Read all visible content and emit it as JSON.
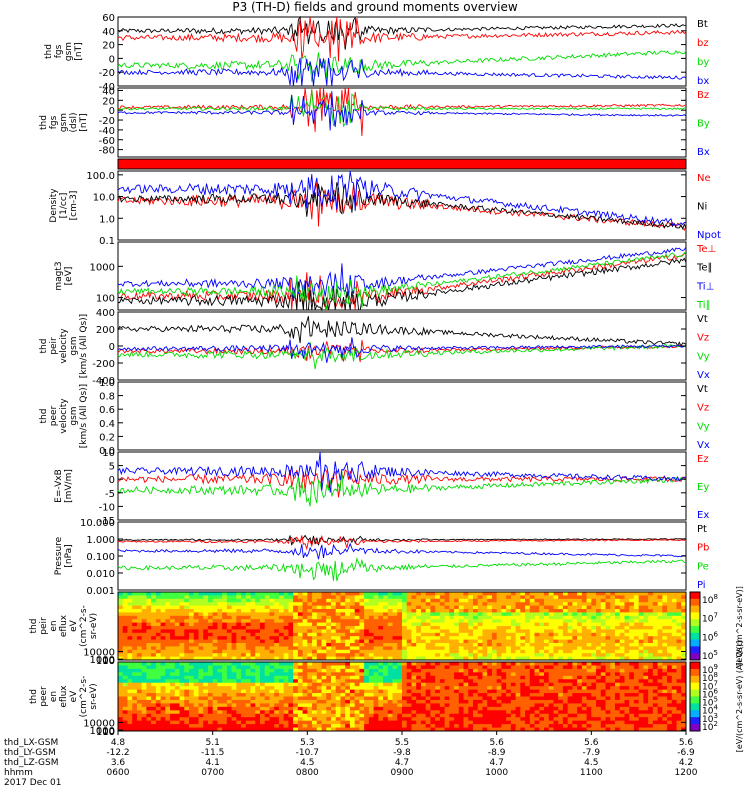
{
  "title": "P3 (TH-D) fields and ground moments overview",
  "chart_data": [
    {
      "type": "line",
      "id": "fgs_gsm",
      "ylabel": [
        "thd",
        "fgs",
        "gsm",
        "[nT]"
      ],
      "yticks": [
        "60",
        "40",
        "20",
        "0",
        "-20",
        "-40"
      ],
      "ylim": [
        -40,
        60
      ],
      "series": [
        {
          "name": "Bt",
          "color": "#000000",
          "base": 40,
          "amp": 4,
          "storm": 22,
          "trend": 8
        },
        {
          "name": "bz",
          "color": "#ff0000",
          "base": 30,
          "amp": 5,
          "storm": 30,
          "trend": 8
        },
        {
          "name": "by",
          "color": "#00dd00",
          "base": -10,
          "amp": 5,
          "storm": 25,
          "trend": 20
        },
        {
          "name": "bx",
          "color": "#0000ff",
          "base": -20,
          "amp": 4,
          "storm": 22,
          "trend": -8
        }
      ]
    },
    {
      "type": "line",
      "id": "fgs_dsl",
      "ylabel": [
        "thd",
        "fgs",
        "gsm",
        "(dsl)",
        "[nT]"
      ],
      "yticks": [
        "40",
        "20",
        "0",
        "-20",
        "-40",
        "-60",
        "-80"
      ],
      "ylim": [
        -95,
        45
      ],
      "series": [
        {
          "name": "Bz",
          "color": "#ff0000",
          "base": 6,
          "amp": 4,
          "storm": 60,
          "trend": 4
        },
        {
          "name": "By",
          "color": "#00dd00",
          "base": 3,
          "amp": 3,
          "storm": 35,
          "trend": 0
        },
        {
          "name": "Bx",
          "color": "#0000ff",
          "base": -5,
          "amp": 3,
          "storm": 40,
          "trend": -6
        }
      ]
    },
    {
      "type": "bar",
      "id": "mode_bar",
      "color": "#ff0000"
    },
    {
      "type": "line",
      "id": "density",
      "log": true,
      "ylabel": [
        "Density",
        "[1/cc]",
        "[cm-3]"
      ],
      "yticks": [
        "100.0",
        "10.0",
        "1.0",
        "0.1"
      ],
      "ylim": [
        0.1,
        150
      ],
      "series": [
        {
          "name": "Ne",
          "color": "#ff0000",
          "base": 0.8,
          "amp": 0.25,
          "storm": 0.6,
          "trend": -1.2
        },
        {
          "name": "Ni",
          "color": "#000000",
          "base": 0.9,
          "amp": 0.2,
          "storm": 0.5,
          "trend": -1.3
        },
        {
          "name": "Npot",
          "color": "#0000ff",
          "base": 1.35,
          "amp": 0.25,
          "storm": 0.6,
          "trend": -1.6
        }
      ]
    },
    {
      "type": "line",
      "id": "temperature",
      "log": true,
      "ylabel": [
        "magt3",
        "[eV]"
      ],
      "yticks": [
        "1000",
        "100"
      ],
      "ylim": [
        40,
        6000
      ],
      "series": [
        {
          "name": "Te⊥",
          "color": "#ff0000",
          "base": 2.05,
          "amp": 0.15,
          "storm": 0.5,
          "trend": 1.3
        },
        {
          "name": "Te∥",
          "color": "#000000",
          "base": 1.9,
          "amp": 0.15,
          "storm": 0.5,
          "trend": 1.3
        },
        {
          "name": "Ti⊥",
          "color": "#0000ff",
          "base": 2.45,
          "amp": 0.12,
          "storm": 0.4,
          "trend": 1.1
        },
        {
          "name": "Ti∥",
          "color": "#00dd00",
          "base": 2.2,
          "amp": 0.12,
          "storm": 0.4,
          "trend": 1.2
        }
      ]
    },
    {
      "type": "line",
      "id": "peir_velocity",
      "ylabel": [
        "thd",
        "peir",
        "velocity",
        "gsm",
        "[km/s (All Qs)]"
      ],
      "yticks": [
        "400",
        "200",
        "0",
        "-200",
        "-400"
      ],
      "ylim": [
        -400,
        400
      ],
      "series": [
        {
          "name": "Vt",
          "color": "#000000",
          "base": 200,
          "amp": 40,
          "storm": 120,
          "trend": -180
        },
        {
          "name": "Vz",
          "color": "#ff0000",
          "base": -60,
          "amp": 30,
          "storm": 100,
          "trend": 60
        },
        {
          "name": "Vy",
          "color": "#00dd00",
          "base": -100,
          "amp": 40,
          "storm": 100,
          "trend": 100
        },
        {
          "name": "Vx",
          "color": "#0000ff",
          "base": -30,
          "amp": 30,
          "storm": 100,
          "trend": 30
        }
      ]
    },
    {
      "type": "line",
      "id": "peer_velocity",
      "ylabel": [
        "thd",
        "peer",
        "velocity",
        "gsm",
        "[km/s (All Qs)]"
      ],
      "yticks": [
        "1.0",
        "0.8",
        "0.6",
        "0.4",
        "0.2",
        "0.0"
      ],
      "ylim": [
        0,
        1
      ],
      "series": [
        {
          "name": "Vt",
          "color": "#000000"
        },
        {
          "name": "Vz",
          "color": "#ff0000"
        },
        {
          "name": "Vy",
          "color": "#00dd00"
        },
        {
          "name": "Vx",
          "color": "#0000ff"
        }
      ]
    },
    {
      "type": "line",
      "id": "efield",
      "ylabel": [
        "E=-VxB",
        "[mV/m]"
      ],
      "yticks": [
        "10",
        "5",
        "0",
        "-5",
        "-10",
        "-15"
      ],
      "ylim": [
        -15,
        10
      ],
      "series": [
        {
          "name": "Ez",
          "color": "#ff0000",
          "base": 0,
          "amp": 1.5,
          "storm": 4,
          "trend": 0
        },
        {
          "name": "Ey",
          "color": "#00dd00",
          "base": -4,
          "amp": 1.5,
          "storm": 4,
          "trend": 4
        },
        {
          "name": "Ex",
          "color": "#0000ff",
          "base": 3,
          "amp": 1.5,
          "storm": 5,
          "trend": -3
        }
      ]
    },
    {
      "type": "line",
      "id": "pressure",
      "log": true,
      "ylabel": [
        "Pressure",
        "[nPa]"
      ],
      "yticks": [
        "10.000",
        "1.000",
        "0.100",
        "0.010",
        "0.001"
      ],
      "ylim": [
        0.001,
        10
      ],
      "series": [
        {
          "name": "Pt",
          "color": "#000000",
          "base": -0.05,
          "amp": 0.05,
          "storm": 0.3,
          "trend": 0.05
        },
        {
          "name": "Pb",
          "color": "#ff0000",
          "base": -0.15,
          "amp": 0.06,
          "storm": 0.4,
          "trend": 0.1
        },
        {
          "name": "Pe",
          "color": "#00dd00",
          "base": -1.7,
          "amp": 0.15,
          "storm": 0.5,
          "trend": 0.4
        },
        {
          "name": "Pi",
          "color": "#0000ff",
          "base": -0.7,
          "amp": 0.1,
          "storm": 0.4,
          "trend": -0.3
        }
      ]
    },
    {
      "type": "heatmap",
      "id": "peir_en_eflux",
      "ylabel": [
        "thd",
        "peir",
        "en",
        "eflux",
        "eV",
        "(cm^2-s-",
        "sr-eV)"
      ],
      "yticks": [
        "10000",
        "1000",
        "100",
        "10"
      ],
      "ylim": [
        5,
        80000
      ],
      "colorbar": {
        "ticks": [
          "10^8",
          "10^7",
          "10^6",
          "10^5"
        ],
        "label": "[eV/(cm^2-s-sr-eV)]"
      }
    },
    {
      "type": "heatmap",
      "id": "peer_en_eflux",
      "ylabel": [
        "thd",
        "peer",
        "en",
        "eflux",
        "eV",
        "(cm^2-s-",
        "sr-eV)"
      ],
      "yticks": [
        "10000",
        "1000",
        "100",
        "10"
      ],
      "ylim": [
        5,
        80000
      ],
      "colorbar": {
        "ticks": [
          "10^9",
          "10^8",
          "10^7",
          "10^6",
          "10^5",
          "10^4",
          "10^3",
          "10^2"
        ],
        "label": "[eV/(cm^2-s-sr-eV) (All Qs)]"
      }
    }
  ],
  "xaxis": {
    "row_labels": [
      "thd_LX-GSM",
      "thd_LY-GSM",
      "thd_LZ-GSM",
      "hhmm",
      "2017 Dec 01"
    ],
    "ticks": [
      {
        "lx": "4.8",
        "ly": "-12.2",
        "lz": "3.6",
        "hhmm": "0600"
      },
      {
        "lx": "5.1",
        "ly": "-11.5",
        "lz": "4.1",
        "hhmm": "0700"
      },
      {
        "lx": "5.3",
        "ly": "-10.7",
        "lz": "4.5",
        "hhmm": "0800"
      },
      {
        "lx": "5.5",
        "ly": "-9.8",
        "lz": "4.7",
        "hhmm": "0900"
      },
      {
        "lx": "5.6",
        "ly": "-8.9",
        "lz": "4.7",
        "hhmm": "1000"
      },
      {
        "lx": "5.6",
        "ly": "-7.9",
        "lz": "4.5",
        "hhmm": "1100"
      },
      {
        "lx": "5.6",
        "ly": "-6.9",
        "lz": "4.2",
        "hhmm": "1200"
      }
    ]
  }
}
